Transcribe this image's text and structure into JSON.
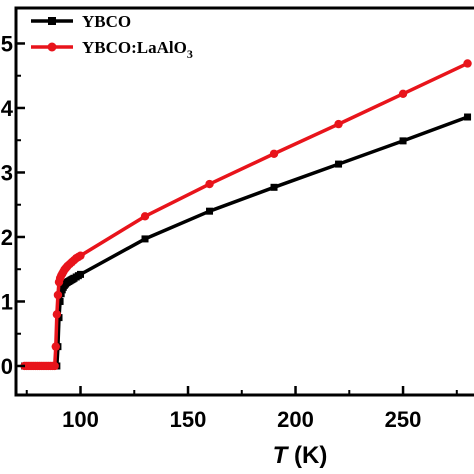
{
  "chart_data": {
    "type": "line",
    "title": "",
    "xlabel": {
      "symbol": "T",
      "unit": "(K)"
    },
    "ylabel": "",
    "xlim": [
      70,
      283
    ],
    "ylim": [
      -0.45,
      5.55
    ],
    "xticks": [
      "100",
      "150",
      "200",
      "250"
    ],
    "yticks": [
      "0",
      "1",
      "2",
      "3",
      "4",
      "5"
    ],
    "xtick_values": [
      100,
      150,
      200,
      250
    ],
    "ytick_values": [
      0,
      1,
      2,
      3,
      4,
      5
    ],
    "legend_position": "top-left",
    "series": [
      {
        "name": "YBCO",
        "color": "#000000",
        "marker": "square",
        "x": [
          74,
          75,
          76,
          77,
          78,
          79,
          80,
          81,
          82,
          83,
          84,
          85,
          86,
          87,
          88,
          89,
          89.5,
          90,
          90.5,
          91,
          91.5,
          92,
          92.5,
          93,
          93.5,
          94,
          94.5,
          95,
          95.5,
          96,
          96.5,
          97,
          98,
          99,
          100,
          130,
          160,
          190,
          220,
          250,
          280
        ],
        "y": [
          0,
          0,
          0,
          0,
          0,
          0,
          0,
          0,
          0,
          0,
          0,
          0,
          0,
          0,
          0,
          0,
          0.3,
          0.75,
          1.0,
          1.12,
          1.18,
          1.22,
          1.25,
          1.27,
          1.29,
          1.3,
          1.31,
          1.32,
          1.33,
          1.34,
          1.35,
          1.36,
          1.38,
          1.4,
          1.42,
          1.97,
          2.4,
          2.77,
          3.13,
          3.49,
          3.86
        ]
      },
      {
        "name": "YBCO:LaAlO",
        "name_subscript": "3",
        "color": "#e8141b",
        "marker": "circle",
        "x": [
          74,
          75,
          76,
          77,
          78,
          79,
          80,
          81,
          82,
          83,
          84,
          85,
          86,
          87,
          88,
          88.5,
          89,
          89.5,
          90,
          90.5,
          91,
          91.5,
          92,
          92.5,
          93,
          93.5,
          94,
          95,
          96,
          97,
          98,
          99,
          100,
          130,
          160,
          190,
          220,
          250,
          280
        ],
        "y": [
          0,
          0,
          0,
          0,
          0,
          0,
          0,
          0,
          0,
          0,
          0,
          0,
          0,
          0,
          0,
          0.3,
          0.8,
          1.1,
          1.3,
          1.36,
          1.4,
          1.43,
          1.46,
          1.49,
          1.51,
          1.53,
          1.55,
          1.58,
          1.61,
          1.64,
          1.67,
          1.69,
          1.71,
          2.32,
          2.82,
          3.29,
          3.75,
          4.22,
          4.69
        ]
      }
    ]
  }
}
